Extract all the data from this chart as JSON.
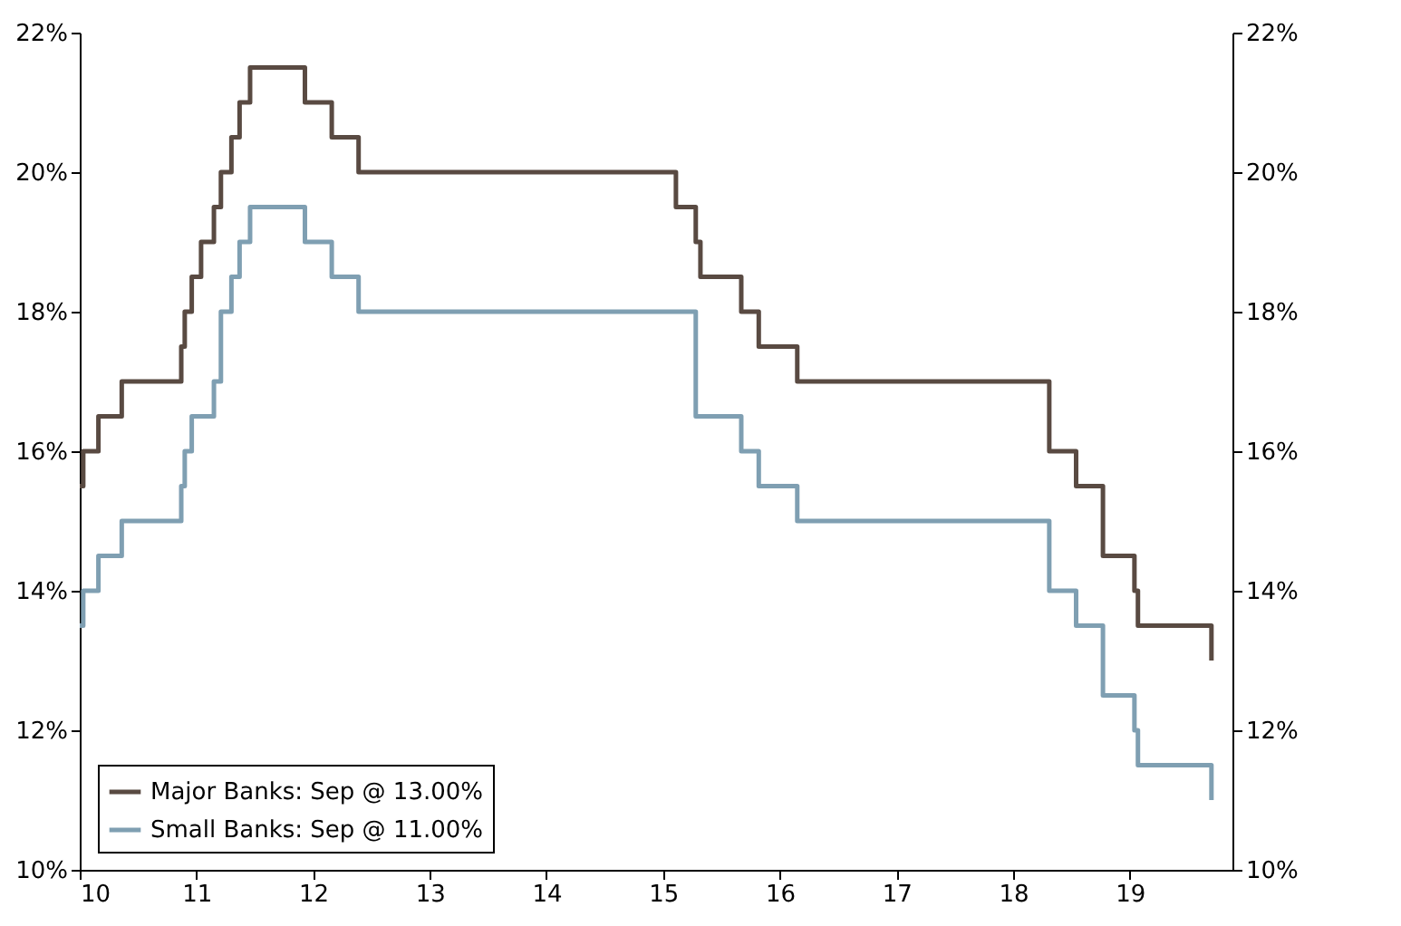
{
  "chart_data": {
    "type": "step",
    "xlim": [
      10,
      19.88
    ],
    "xticks": [
      10,
      11,
      12,
      13,
      14,
      15,
      16,
      17,
      18,
      19
    ],
    "ylim": [
      10,
      22
    ],
    "yticks": [
      {
        "value": 10,
        "label": "10%"
      },
      {
        "value": 12,
        "label": "12%"
      },
      {
        "value": 14,
        "label": "14%"
      },
      {
        "value": 16,
        "label": "16%"
      },
      {
        "value": 18,
        "label": "18%"
      },
      {
        "value": 20,
        "label": "20%"
      },
      {
        "value": 22,
        "label": "22%"
      }
    ],
    "y2lim": [
      10,
      22
    ],
    "y2ticks": [
      {
        "value": 10,
        "label": "10%"
      },
      {
        "value": 12,
        "label": "12%"
      },
      {
        "value": 14,
        "label": "14%"
      },
      {
        "value": 16,
        "label": "16%"
      },
      {
        "value": 18,
        "label": "18%"
      },
      {
        "value": 20,
        "label": "20%"
      },
      {
        "value": 22,
        "label": "22%"
      }
    ],
    "grid": false,
    "legend": "bottom left",
    "marker": "none",
    "line_style": "solid",
    "series": [
      {
        "name": "Major Banks: Sep @ 13.00%",
        "color": "#594a42",
        "x": [
          10,
          10.03,
          10.16,
          10.36,
          10.87,
          10.9,
          10.96,
          11.04,
          11.15,
          11.21,
          11.3,
          11.37,
          11.46,
          11.93,
          12.16,
          12.39,
          15.11,
          15.28,
          15.32,
          15.67,
          15.82,
          16.15,
          18.31,
          18.54,
          18.77,
          19.04,
          19.07,
          19.7
        ],
        "values": [
          15.5,
          16,
          16.5,
          17,
          17.5,
          18,
          18.5,
          19,
          19.5,
          20,
          20.5,
          21,
          21.5,
          21,
          20.5,
          20,
          19.5,
          19,
          18.5,
          18,
          17.5,
          17,
          16,
          15.5,
          14.5,
          14,
          13.5,
          13
        ]
      },
      {
        "name": "Small Banks: Sep @ 11.00%",
        "color": "#7f9fb2",
        "x": [
          10,
          10.03,
          10.16,
          10.36,
          10.87,
          10.9,
          10.96,
          11.15,
          11.21,
          11.3,
          11.37,
          11.46,
          11.93,
          12.16,
          12.39,
          15.28,
          15.67,
          15.82,
          16.15,
          18.31,
          18.54,
          18.77,
          19.04,
          19.07,
          19.7
        ],
        "values": [
          13.5,
          14,
          14.5,
          15,
          15.5,
          16,
          16.5,
          17,
          18,
          18.5,
          19,
          19.5,
          19,
          18.5,
          18,
          16.5,
          16,
          15.5,
          15,
          14,
          13.5,
          12.5,
          12,
          11.5,
          11
        ]
      }
    ]
  }
}
